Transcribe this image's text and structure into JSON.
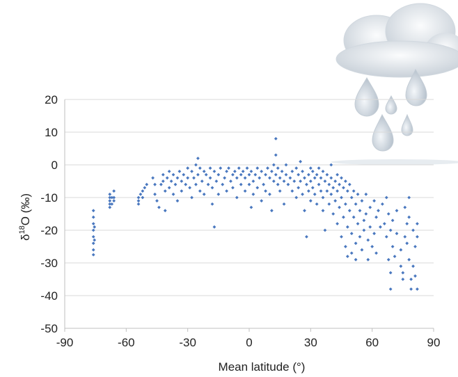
{
  "chart_data": {
    "type": "scatter",
    "title": "",
    "xlabel": "Mean latitude (°)",
    "ylabel_main": "δ",
    "ylabel_sup": "18",
    "ylabel_rest": "O (‰)",
    "xlim": [
      -90,
      90
    ],
    "ylim": [
      -50,
      20
    ],
    "xticks": [
      "-90",
      "-60",
      "-30",
      "0",
      "30",
      "60",
      "90"
    ],
    "yticks": [
      "20",
      "10",
      "0",
      "-10",
      "-20",
      "-30",
      "-40",
      "-50"
    ],
    "grid": "horizontal",
    "marker_color": "#4a78bf",
    "series": [
      {
        "points": [
          [
            -76,
            -14
          ],
          [
            -76,
            -16
          ],
          [
            -76,
            -18
          ],
          [
            -76,
            -20
          ],
          [
            -76,
            -22
          ],
          [
            -76,
            -24
          ],
          [
            -76,
            -26
          ],
          [
            -76,
            -27.5
          ],
          [
            -75.5,
            -19
          ],
          [
            -75.5,
            -23
          ],
          [
            -68,
            -9
          ],
          [
            -68,
            -10
          ],
          [
            -68,
            -11
          ],
          [
            -68,
            -12
          ],
          [
            -68,
            -13
          ],
          [
            -67,
            -12
          ],
          [
            -66,
            -8
          ],
          [
            -66,
            -10
          ],
          [
            -66,
            -11
          ],
          [
            -67,
            -10
          ],
          [
            -54,
            -10
          ],
          [
            -54,
            -11
          ],
          [
            -54,
            -12
          ],
          [
            -53,
            -9
          ],
          [
            -52,
            -8
          ],
          [
            -52,
            -10
          ],
          [
            -51,
            -7
          ],
          [
            -50,
            -6
          ],
          [
            -47,
            -4
          ],
          [
            -46,
            -6
          ],
          [
            -46,
            -9
          ],
          [
            -45,
            -11
          ],
          [
            -44,
            -13
          ],
          [
            -43,
            -6
          ],
          [
            -42,
            -3
          ],
          [
            -42,
            -5
          ],
          [
            -41,
            -8
          ],
          [
            -41,
            -14
          ],
          [
            -40,
            -4
          ],
          [
            -39,
            -2
          ],
          [
            -39,
            -7
          ],
          [
            -38,
            -5
          ],
          [
            -37,
            -3
          ],
          [
            -37,
            -9
          ],
          [
            -36,
            -6
          ],
          [
            -35,
            -4
          ],
          [
            -35,
            -11
          ],
          [
            -34,
            -2
          ],
          [
            -33,
            -5
          ],
          [
            -33,
            -8
          ],
          [
            -32,
            -3
          ],
          [
            -31,
            -6
          ],
          [
            -30,
            -1
          ],
          [
            -30,
            -4
          ],
          [
            -29,
            -7
          ],
          [
            -28,
            -2
          ],
          [
            -28,
            -10
          ],
          [
            -27,
            -4
          ],
          [
            -26,
            0
          ],
          [
            -26,
            -6
          ],
          [
            -25,
            2
          ],
          [
            -25,
            -3
          ],
          [
            -24,
            -1
          ],
          [
            -24,
            -8
          ],
          [
            -23,
            -5
          ],
          [
            -22,
            -2
          ],
          [
            -22,
            -9
          ],
          [
            -21,
            -3
          ],
          [
            -20,
            -6
          ],
          [
            -19,
            -1
          ],
          [
            -19,
            -4
          ],
          [
            -18,
            -7
          ],
          [
            -18,
            -12
          ],
          [
            -17,
            -19
          ],
          [
            -17,
            -2
          ],
          [
            -16,
            -5
          ],
          [
            -15,
            -3
          ],
          [
            -15,
            -9
          ],
          [
            -14,
            -1
          ],
          [
            -13,
            -6
          ],
          [
            -12,
            -4
          ],
          [
            -11,
            -2
          ],
          [
            -11,
            -8
          ],
          [
            -10,
            -1
          ],
          [
            -9,
            -5
          ],
          [
            -8,
            -3
          ],
          [
            -8,
            -7
          ],
          [
            -7,
            -2
          ],
          [
            -6,
            -10
          ],
          [
            -6,
            -4
          ],
          [
            -5,
            -1
          ],
          [
            -4,
            -6
          ],
          [
            -4,
            -3
          ],
          [
            -3,
            -2
          ],
          [
            -2,
            -8
          ],
          [
            -2,
            -4
          ],
          [
            -1,
            -1
          ],
          [
            0,
            -3
          ],
          [
            0,
            -6
          ],
          [
            1,
            -2
          ],
          [
            1,
            -13
          ],
          [
            2,
            -5
          ],
          [
            2,
            -9
          ],
          [
            3,
            -3
          ],
          [
            4,
            -1
          ],
          [
            4,
            -7
          ],
          [
            5,
            -4
          ],
          [
            6,
            -2
          ],
          [
            6,
            -11
          ],
          [
            7,
            -6
          ],
          [
            8,
            -3
          ],
          [
            8,
            -8
          ],
          [
            9,
            -1
          ],
          [
            10,
            -4
          ],
          [
            10,
            -9
          ],
          [
            11,
            -2
          ],
          [
            11,
            -14
          ],
          [
            12,
            -5
          ],
          [
            12,
            0
          ],
          [
            13,
            3
          ],
          [
            13,
            -3
          ],
          [
            13,
            8
          ],
          [
            14,
            -6
          ],
          [
            14,
            -1
          ],
          [
            15,
            -4
          ],
          [
            15,
            -8
          ],
          [
            16,
            -2
          ],
          [
            17,
            -5
          ],
          [
            17,
            -12
          ],
          [
            18,
            -3
          ],
          [
            18,
            0
          ],
          [
            19,
            -6
          ],
          [
            20,
            -4
          ],
          [
            21,
            -2
          ],
          [
            21,
            -8
          ],
          [
            22,
            -5
          ],
          [
            23,
            -1
          ],
          [
            23,
            -10
          ],
          [
            24,
            -3
          ],
          [
            24,
            -7
          ],
          [
            25,
            1
          ],
          [
            25,
            -5
          ],
          [
            26,
            -9
          ],
          [
            26,
            -2
          ],
          [
            27,
            -4
          ],
          [
            27,
            -14
          ],
          [
            28,
            -6
          ],
          [
            28,
            -22
          ],
          [
            29,
            -3
          ],
          [
            29,
            -8
          ],
          [
            30,
            -1
          ],
          [
            30,
            -5
          ],
          [
            30,
            -11
          ],
          [
            31,
            -2
          ],
          [
            31,
            -7
          ],
          [
            32,
            -4
          ],
          [
            32,
            -9
          ],
          [
            33,
            -12
          ],
          [
            33,
            -3
          ],
          [
            34,
            -6
          ],
          [
            34,
            -1
          ],
          [
            35,
            -8
          ],
          [
            35,
            -4
          ],
          [
            36,
            -2
          ],
          [
            36,
            -10
          ],
          [
            36,
            -14
          ],
          [
            37,
            -5
          ],
          [
            37,
            -20
          ],
          [
            38,
            -3
          ],
          [
            38,
            -8
          ],
          [
            39,
            -6
          ],
          [
            39,
            -12
          ],
          [
            40,
            -4
          ],
          [
            40,
            -9
          ],
          [
            40,
            0
          ],
          [
            41,
            -7
          ],
          [
            41,
            -15
          ],
          [
            42,
            -5
          ],
          [
            42,
            -11
          ],
          [
            43,
            -3
          ],
          [
            43,
            -8
          ],
          [
            43,
            -18
          ],
          [
            44,
            -6
          ],
          [
            44,
            -13
          ],
          [
            45,
            -4
          ],
          [
            45,
            -10
          ],
          [
            45,
            -22
          ],
          [
            46,
            -7
          ],
          [
            46,
            -16
          ],
          [
            47,
            -5
          ],
          [
            47,
            -12
          ],
          [
            47,
            -25
          ],
          [
            48,
            -8
          ],
          [
            48,
            -19
          ],
          [
            48,
            -28
          ],
          [
            49,
            -6
          ],
          [
            49,
            -14
          ],
          [
            50,
            -10
          ],
          [
            50,
            -21
          ],
          [
            50,
            -27
          ],
          [
            51,
            -8
          ],
          [
            51,
            -16
          ],
          [
            52,
            -12
          ],
          [
            52,
            -24
          ],
          [
            52,
            -29
          ],
          [
            53,
            -9
          ],
          [
            53,
            -18
          ],
          [
            54,
            -14
          ],
          [
            54,
            -22
          ],
          [
            55,
            -11
          ],
          [
            55,
            -26
          ],
          [
            56,
            -17
          ],
          [
            56,
            -20
          ],
          [
            57,
            -9
          ],
          [
            57,
            -15
          ],
          [
            58,
            -23
          ],
          [
            58,
            -29
          ],
          [
            59,
            -13
          ],
          [
            59,
            -19
          ],
          [
            60,
            -25
          ],
          [
            61,
            -11
          ],
          [
            61,
            -21
          ],
          [
            62,
            -16
          ],
          [
            62,
            -27
          ],
          [
            63,
            -14
          ],
          [
            64,
            -19
          ],
          [
            65,
            -12
          ],
          [
            66,
            -18
          ],
          [
            67,
            -10
          ],
          [
            67,
            -22
          ],
          [
            68,
            -15
          ],
          [
            68,
            -29
          ],
          [
            69,
            -20
          ],
          [
            69,
            -33
          ],
          [
            69,
            -38
          ],
          [
            70,
            -17
          ],
          [
            70,
            -25
          ],
          [
            71,
            -28
          ],
          [
            72,
            -14
          ],
          [
            72,
            -21
          ],
          [
            74,
            -26
          ],
          [
            74,
            -31
          ],
          [
            75,
            -33
          ],
          [
            75,
            -35
          ],
          [
            76,
            -22
          ],
          [
            76,
            -13
          ],
          [
            77,
            -18
          ],
          [
            77,
            -24
          ],
          [
            78,
            -10
          ],
          [
            78,
            -16
          ],
          [
            78,
            -29
          ],
          [
            79,
            -35
          ],
          [
            79,
            -38
          ],
          [
            80,
            -20
          ],
          [
            80,
            -31
          ],
          [
            81,
            -25
          ],
          [
            81,
            -34
          ],
          [
            82,
            -38
          ],
          [
            82,
            -22
          ],
          [
            82,
            -18
          ]
        ]
      }
    ]
  }
}
